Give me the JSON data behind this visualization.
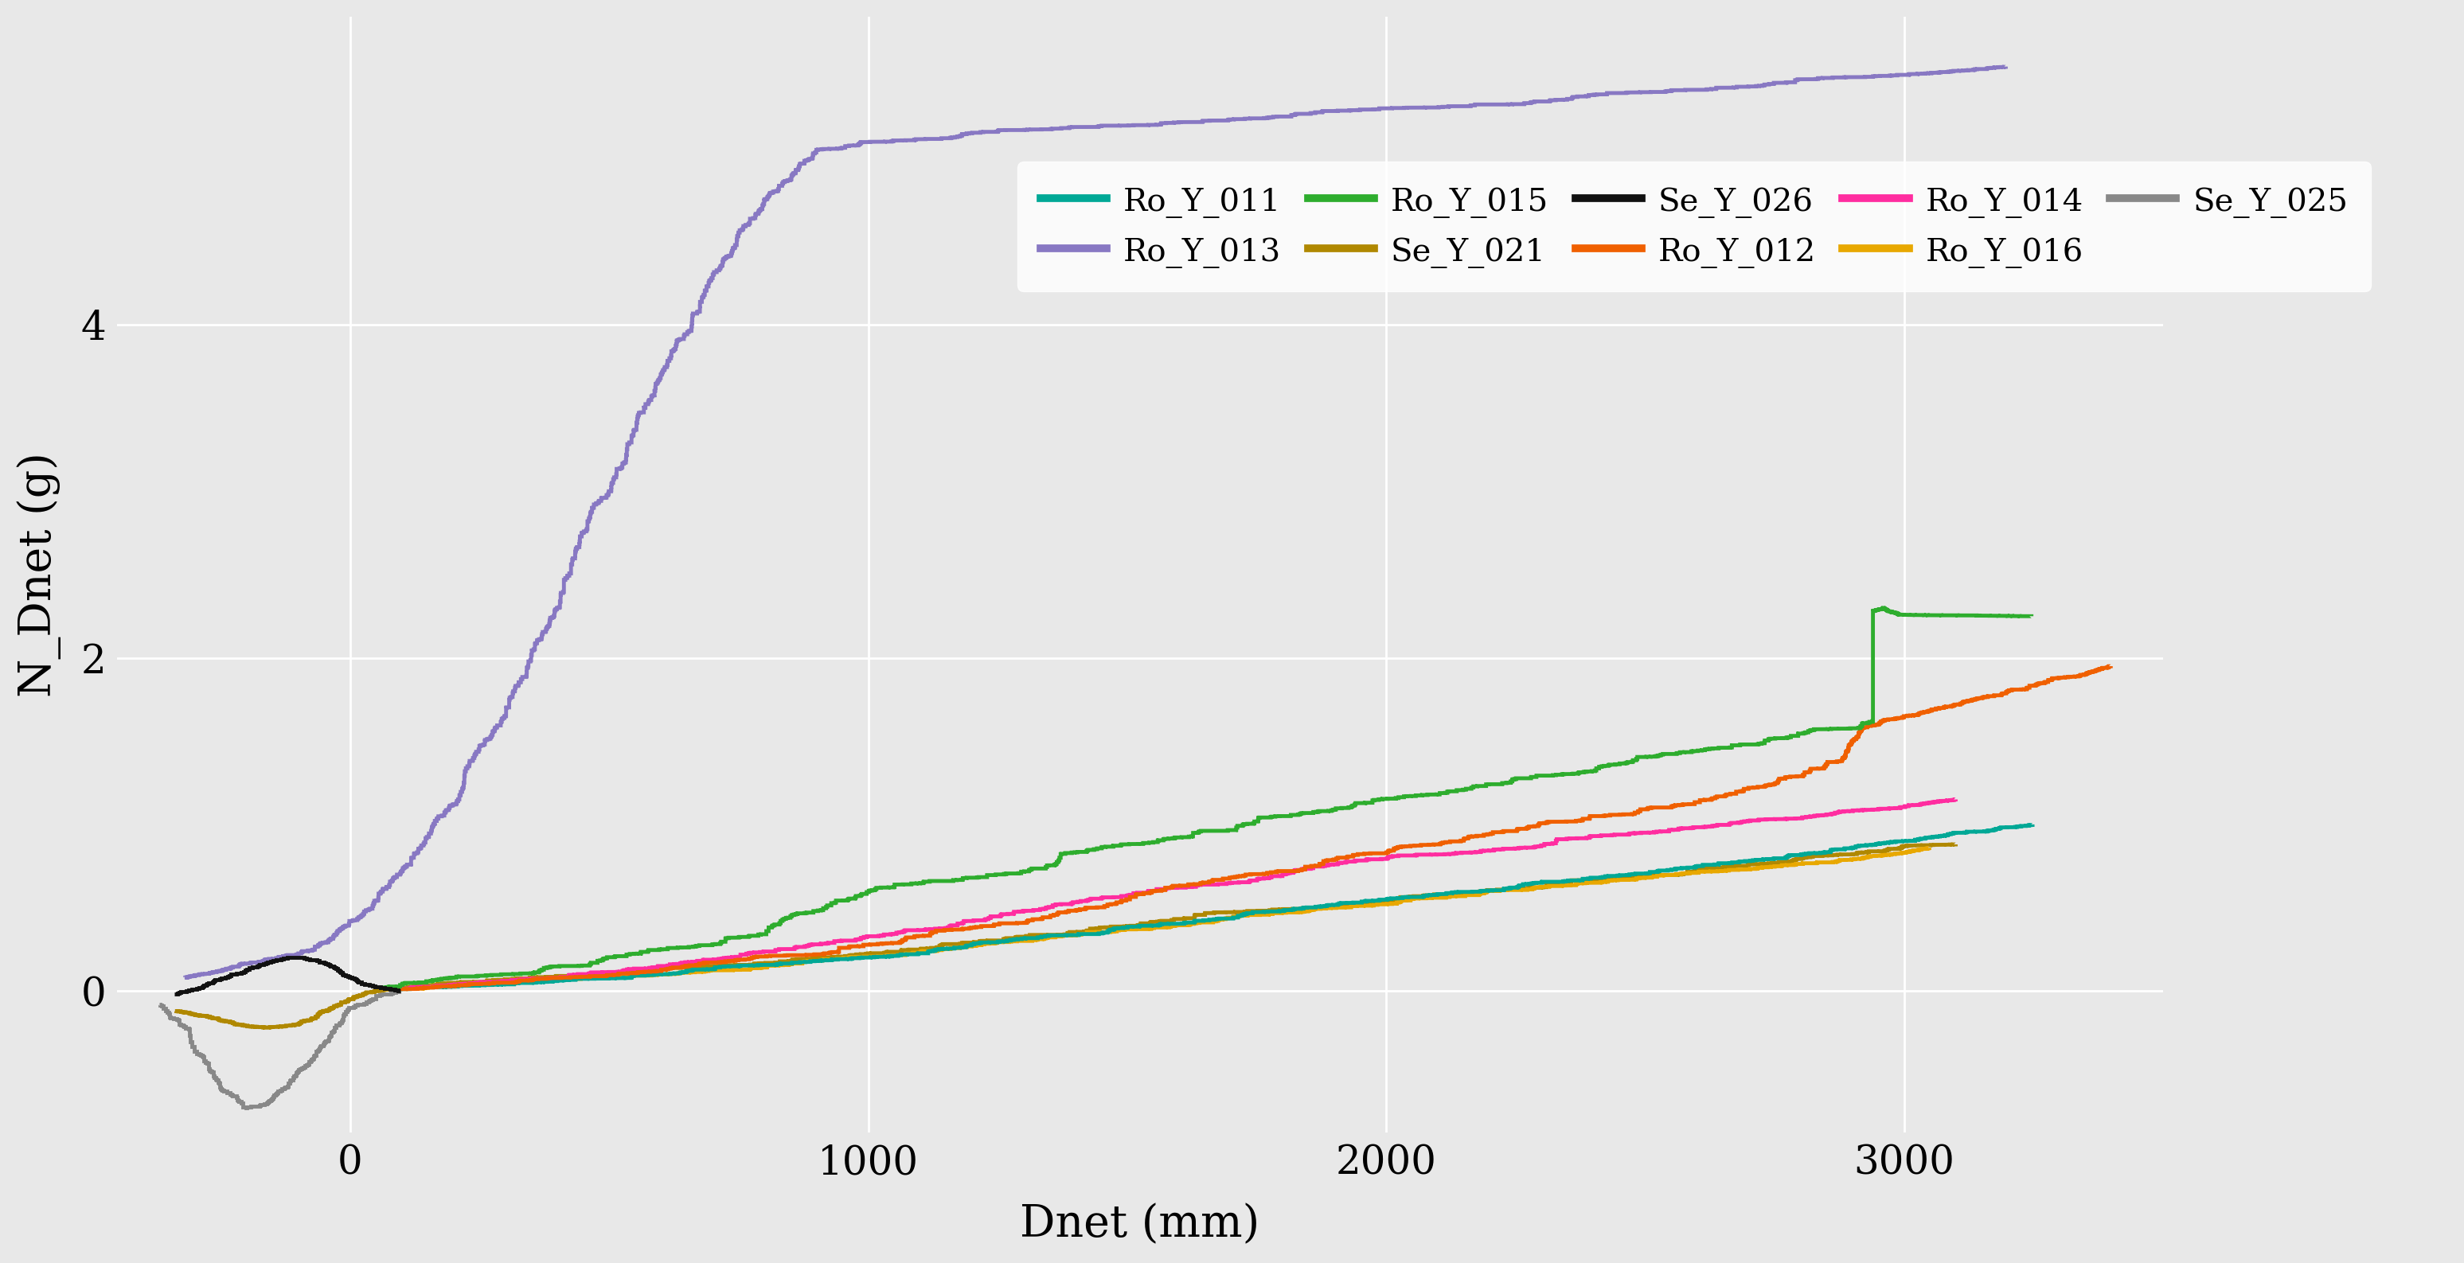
{
  "title": "",
  "xlabel": "Dnet (mm)",
  "ylabel": "N_Dnet (g)",
  "background_color": "#E8E8E8",
  "grid_color": "#FFFFFF",
  "xlim": [
    -450,
    3500
  ],
  "ylim": [
    -0.85,
    5.85
  ],
  "yticks": [
    0,
    2,
    4
  ],
  "xticks": [
    0,
    1000,
    2000,
    3000
  ],
  "series": {
    "Ro_Y_011": {
      "color": "#00A896"
    },
    "Ro_Y_012": {
      "color": "#F06000"
    },
    "Ro_Y_013": {
      "color": "#8878C3"
    },
    "Ro_Y_014": {
      "color": "#FF2DA0"
    },
    "Ro_Y_015": {
      "color": "#2EAD2E"
    },
    "Ro_Y_016": {
      "color": "#E8A800"
    },
    "Se_Y_021": {
      "color": "#B08800"
    },
    "Se_Y_025": {
      "color": "#888888"
    },
    "Se_Y_026": {
      "color": "#111111"
    }
  },
  "legend_row1": [
    "Ro_Y_011",
    "Ro_Y_013",
    "Ro_Y_015",
    "Se_Y_021",
    "Se_Y_026"
  ],
  "legend_row2": [
    "Ro_Y_012",
    "Ro_Y_014",
    "Ro_Y_016",
    "Se_Y_025"
  ]
}
